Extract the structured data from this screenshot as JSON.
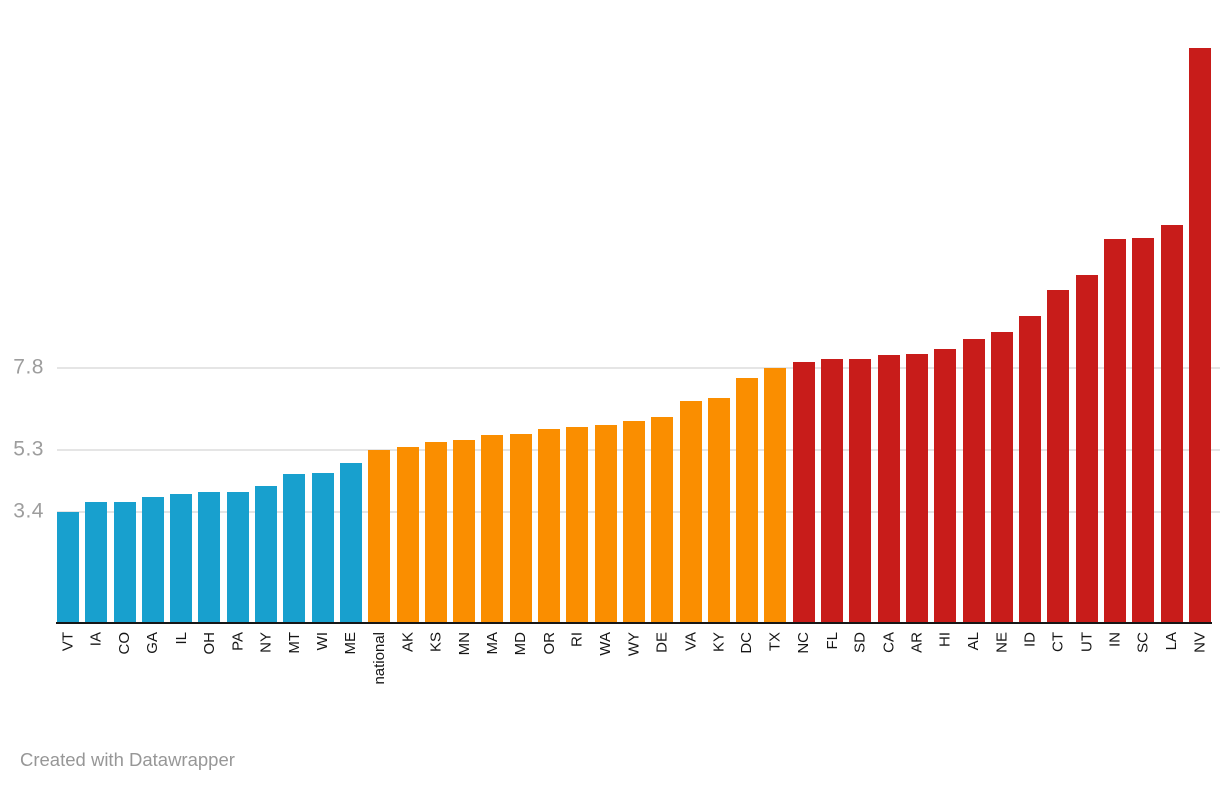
{
  "footer": {
    "credit": "Created with Datawrapper"
  },
  "colors": {
    "bar_blue": "#18a0ce",
    "bar_orange": "#fa8e00",
    "bar_red": "#c81c1a",
    "gridline": "#e5e5e5",
    "axis_line": "#161616",
    "y_tick_text": "#9d9d9d",
    "x_label_text": "#161616",
    "credit_text": "#979797"
  },
  "chart_data": {
    "type": "bar",
    "title": "",
    "xlabel": "",
    "ylabel": "",
    "grid": true,
    "ylim": [
      0,
      17.6
    ],
    "yticks": [
      3.4,
      5.3,
      7.8
    ],
    "categories": [
      "VT",
      "IA",
      "CO",
      "GA",
      "IL",
      "OH",
      "PA",
      "NY",
      "MT",
      "WI",
      "ME",
      "national",
      "AK",
      "KS",
      "MN",
      "MA",
      "MD",
      "OR",
      "RI",
      "WA",
      "WY",
      "DE",
      "VA",
      "KY",
      "DC",
      "TX",
      "NC",
      "FL",
      "SD",
      "CA",
      "AR",
      "HI",
      "AL",
      "NE",
      "ID",
      "CT",
      "UT",
      "IN",
      "SC",
      "LA",
      "NV"
    ],
    "values": [
      3.4,
      3.7,
      3.7,
      3.85,
      3.95,
      4.0,
      4.0,
      4.2,
      4.55,
      4.6,
      4.9,
      5.3,
      5.4,
      5.55,
      5.6,
      5.75,
      5.8,
      5.95,
      6.0,
      6.05,
      6.2,
      6.3,
      6.8,
      6.9,
      7.5,
      7.8,
      8.0,
      8.1,
      8.1,
      8.2,
      8.25,
      8.4,
      8.7,
      8.9,
      9.4,
      10.2,
      10.65,
      11.75,
      11.8,
      12.2,
      17.6
    ],
    "groups": [
      "blue",
      "blue",
      "blue",
      "blue",
      "blue",
      "blue",
      "blue",
      "blue",
      "blue",
      "blue",
      "blue",
      "orange",
      "orange",
      "orange",
      "orange",
      "orange",
      "orange",
      "orange",
      "orange",
      "orange",
      "orange",
      "orange",
      "orange",
      "orange",
      "orange",
      "orange",
      "red",
      "red",
      "red",
      "red",
      "red",
      "red",
      "red",
      "red",
      "red",
      "red",
      "red",
      "red",
      "red",
      "red",
      "red"
    ],
    "legend": []
  }
}
